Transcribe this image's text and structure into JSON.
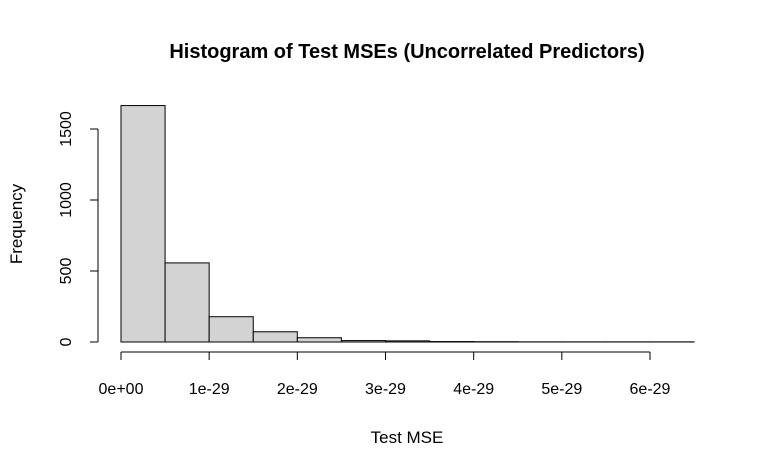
{
  "chart_data": {
    "type": "bar",
    "title": "Histogram of Test MSEs (Uncorrelated Predictors)",
    "xlabel": "Test MSE",
    "ylabel": "Frequency",
    "bins": [
      {
        "x0": 0.0,
        "x1": 5e-30,
        "count": 1665
      },
      {
        "x0": 5e-30,
        "x1": 1e-29,
        "count": 557
      },
      {
        "x0": 1e-29,
        "x1": 1.5e-29,
        "count": 178
      },
      {
        "x0": 1.5e-29,
        "x1": 2e-29,
        "count": 72
      },
      {
        "x0": 2e-29,
        "x1": 2.5e-29,
        "count": 30
      },
      {
        "x0": 2.5e-29,
        "x1": 3e-29,
        "count": 10
      },
      {
        "x0": 3e-29,
        "x1": 3.5e-29,
        "count": 8
      },
      {
        "x0": 3.5e-29,
        "x1": 4e-29,
        "count": 3
      },
      {
        "x0": 4e-29,
        "x1": 4.5e-29,
        "count": 2
      },
      {
        "x0": 4.5e-29,
        "x1": 5e-29,
        "count": 1
      },
      {
        "x0": 5e-29,
        "x1": 5.5e-29,
        "count": 1
      },
      {
        "x0": 5.5e-29,
        "x1": 6e-29,
        "count": 1
      },
      {
        "x0": 6e-29,
        "x1": 6.5e-29,
        "count": 1
      }
    ],
    "x_ticks": [
      {
        "value": 0.0,
        "label": "0e+00"
      },
      {
        "value": 1e-29,
        "label": "1e-29"
      },
      {
        "value": 2e-29,
        "label": "2e-29"
      },
      {
        "value": 3e-29,
        "label": "3e-29"
      },
      {
        "value": 4e-29,
        "label": "4e-29"
      },
      {
        "value": 5e-29,
        "label": "5e-29"
      },
      {
        "value": 6e-29,
        "label": "6e-29"
      }
    ],
    "y_ticks": [
      {
        "value": 0,
        "label": "0"
      },
      {
        "value": 500,
        "label": "500"
      },
      {
        "value": 1000,
        "label": "1000"
      },
      {
        "value": 1500,
        "label": "1500"
      }
    ],
    "xlim": [
      0.0,
      6.5e-29
    ],
    "ylim": [
      0,
      1665
    ],
    "grid": false,
    "bar_fill": "#d3d3d3",
    "bar_stroke": "#000000"
  }
}
